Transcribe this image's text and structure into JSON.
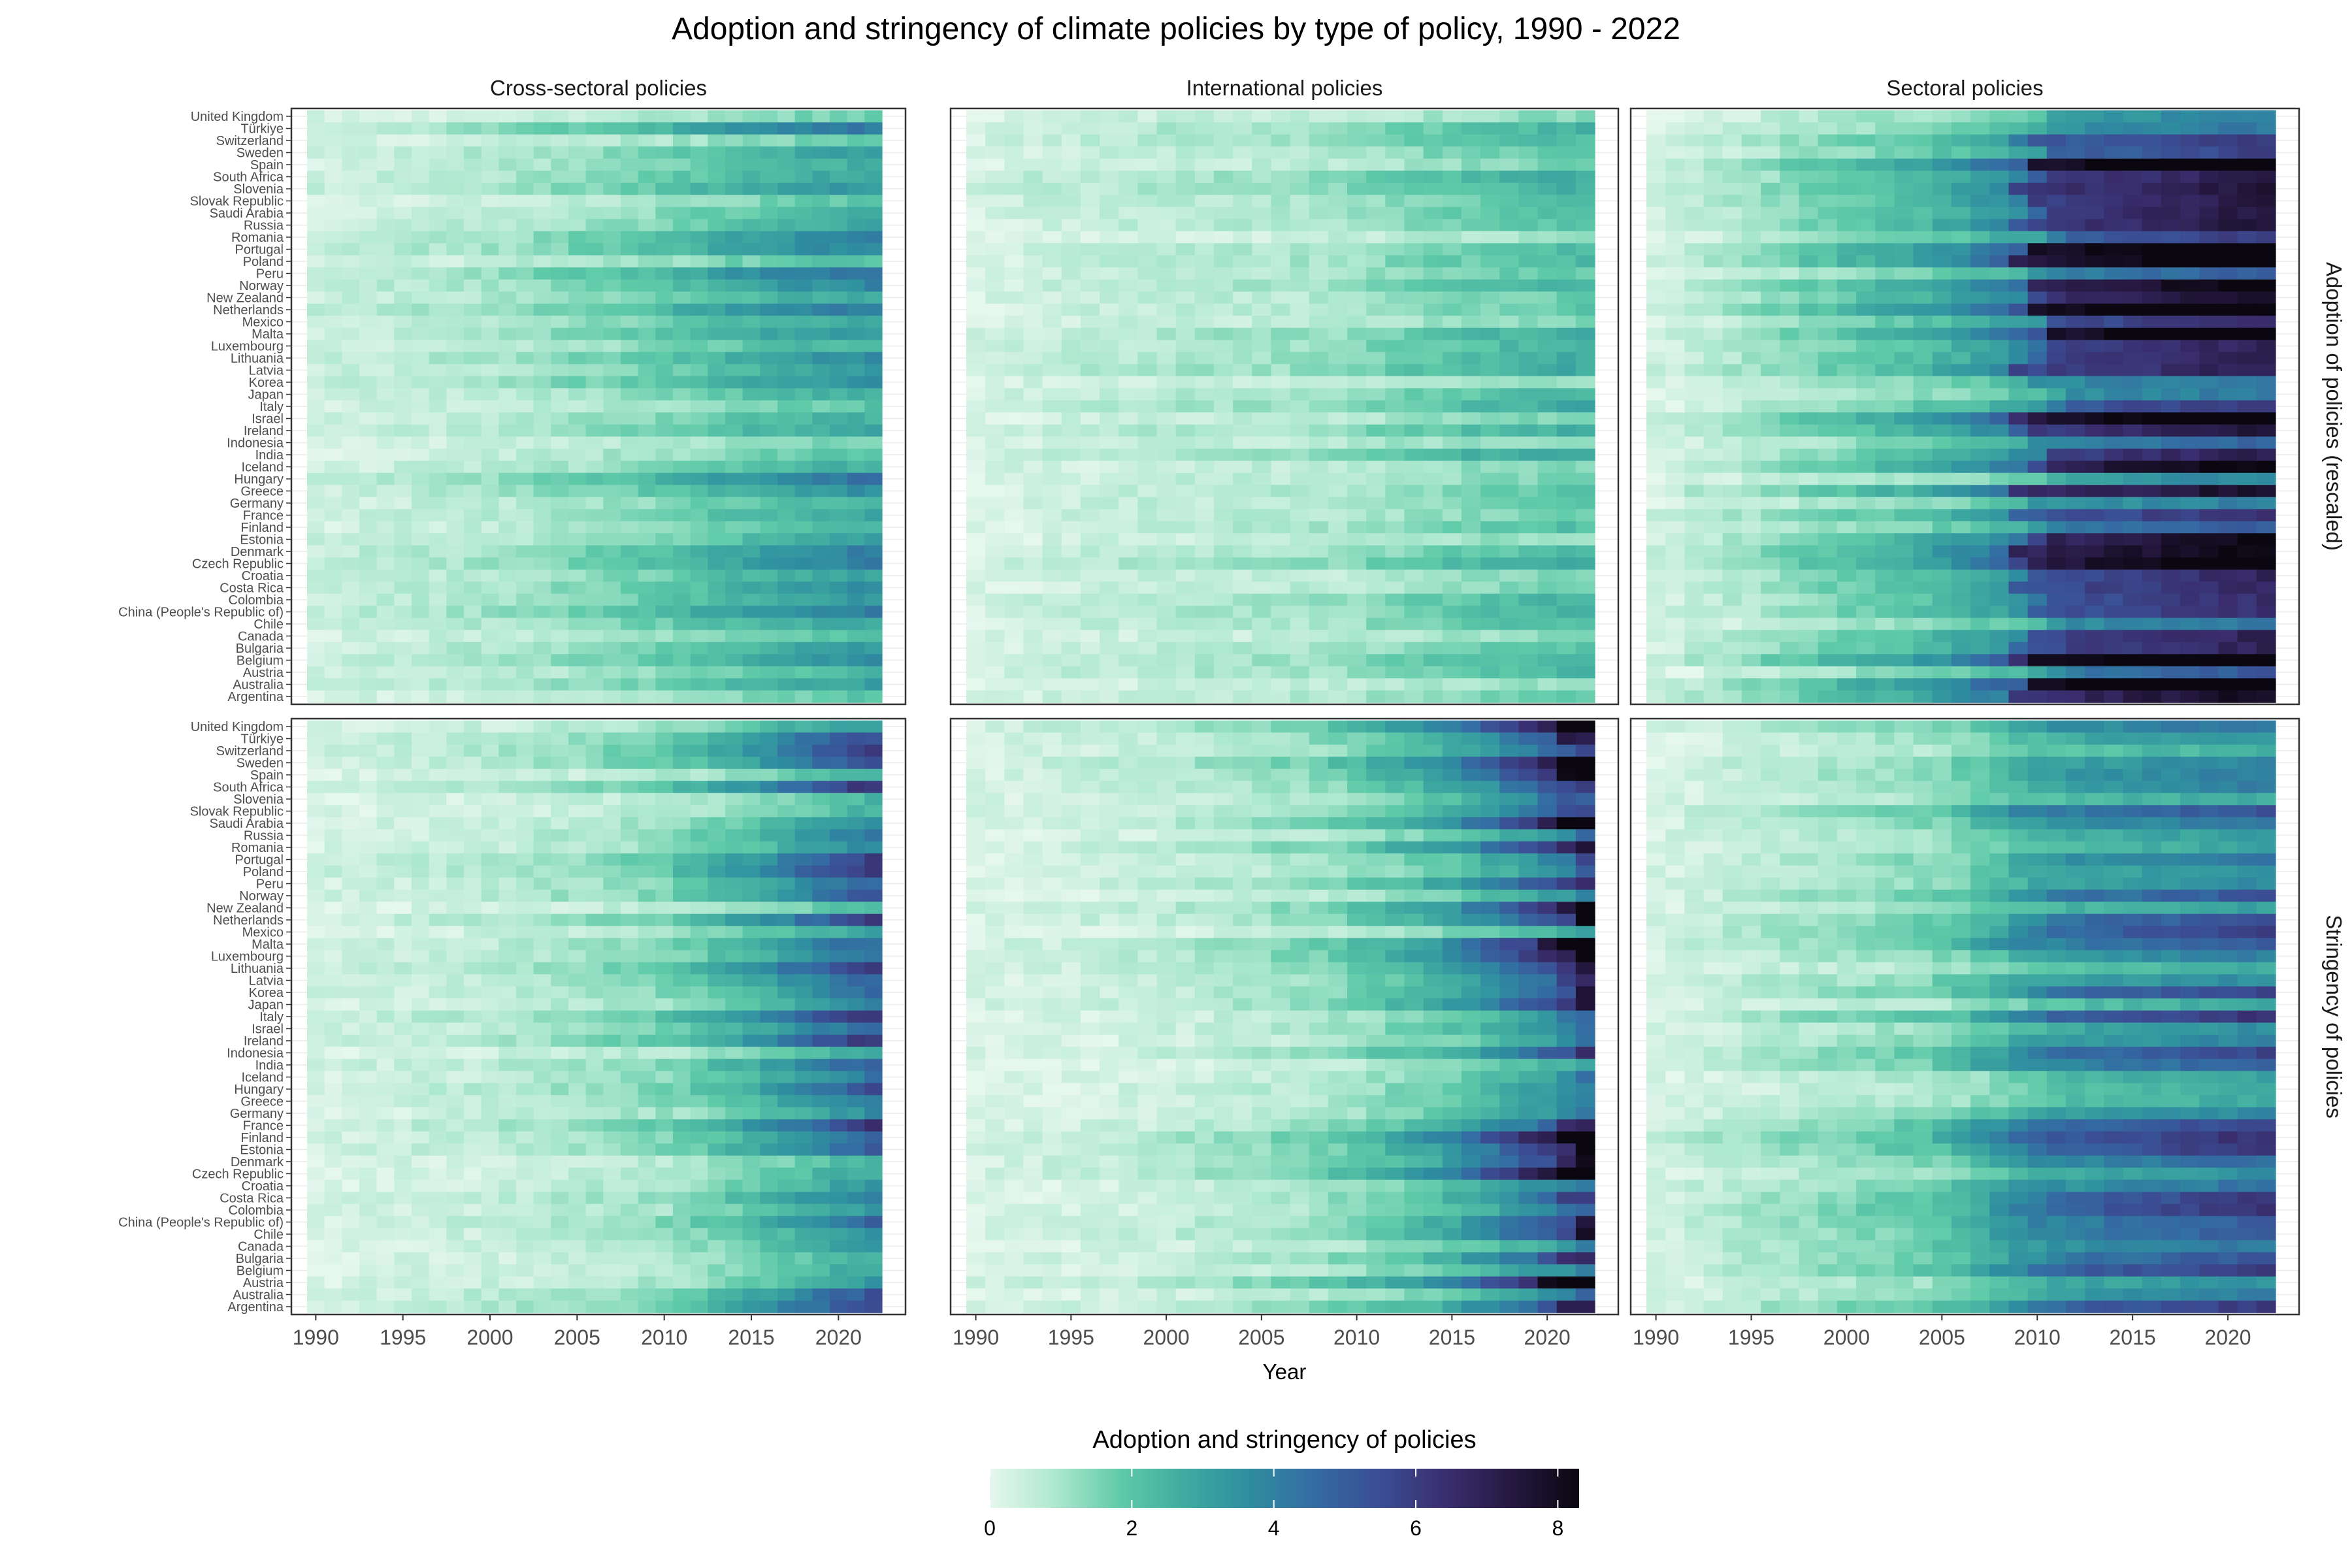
{
  "chart_data": {
    "type": "heatmap",
    "title": "Adoption and stringency of climate policies by type of policy, 1990 - 2022",
    "xlabel": "Year",
    "legend_title": "Adoption and stringency of policies",
    "legend_placement": "bottom",
    "value_range": [
      0,
      8.3
    ],
    "legend_ticks": [
      "0",
      "2",
      "4",
      "6",
      "8"
    ],
    "x_ticks": [
      "1990",
      "1995",
      "2000",
      "2005",
      "2010",
      "2015",
      "2020"
    ],
    "x_range": [
      1990,
      2022
    ],
    "columns": [
      "Cross-sectoral policies",
      "International policies",
      "Sectoral policies"
    ],
    "rows": [
      "Adoption of policies (rescaled)",
      "Stringency of policies"
    ],
    "colors": [
      "#e6f7ee",
      "#aee8d0",
      "#5fcaa8",
      "#3eaaa0",
      "#2f8ca0",
      "#346aa2",
      "#3b4c92",
      "#392d6d",
      "#24183f",
      "#0b0711"
    ],
    "grid": true,
    "countries": [
      "United Kingdom",
      "Türkiye",
      "Switzerland",
      "Sweden",
      "Spain",
      "South Africa",
      "Slovenia",
      "Slovak Republic",
      "Saudi Arabia",
      "Russia",
      "Romania",
      "Portugal",
      "Poland",
      "Peru",
      "Norway",
      "New Zealand",
      "Netherlands",
      "Mexico",
      "Malta",
      "Luxembourg",
      "Lithuania",
      "Latvia",
      "Korea",
      "Japan",
      "Italy",
      "Israel",
      "Ireland",
      "Indonesia",
      "India",
      "Iceland",
      "Hungary",
      "Greece",
      "Germany",
      "France",
      "Finland",
      "Estonia",
      "Denmark",
      "Czech Republic",
      "Croatia",
      "Costa Rica",
      "Colombia",
      "China (People's Republic of)",
      "Chile",
      "Canada",
      "Bulgaria",
      "Belgium",
      "Austria",
      "Australia",
      "Argentina"
    ],
    "value_model": "Each cell value (0 to 8.3) is estimated per panel as a smooth function of year with a per-country intensity; panel profiles listed below, values in colour-scale units.",
    "panel_profiles": [
      {
        "row": "Adoption of policies (rescaled)",
        "column": "Cross-sectoral policies",
        "years": [
          1990,
          2000,
          2010,
          2015,
          2022
        ],
        "typical_values": [
          0.4,
          0.8,
          1.6,
          2.3,
          3.0
        ]
      },
      {
        "row": "Adoption of policies (rescaled)",
        "column": "International policies",
        "years": [
          1990,
          1994,
          2000,
          2008,
          2014,
          2022
        ],
        "typical_values": [
          0.2,
          0.5,
          0.7,
          0.9,
          1.5,
          2.1
        ]
      },
      {
        "row": "Adoption of policies (rescaled)",
        "column": "Sectoral policies",
        "years": [
          1990,
          1995,
          2005,
          2009,
          2010,
          2022
        ],
        "typical_values": [
          0.3,
          1.0,
          2.4,
          3.6,
          5.6,
          7.0
        ]
      },
      {
        "row": "Stringency of policies",
        "column": "Cross-sectoral policies",
        "years": [
          1990,
          2000,
          2010,
          2016,
          2022
        ],
        "typical_values": [
          0.3,
          0.6,
          1.3,
          2.6,
          4.4
        ]
      },
      {
        "row": "Stringency of policies",
        "column": "International policies",
        "years": [
          1990,
          2000,
          2008,
          2015,
          2021,
          2022
        ],
        "typical_values": [
          0.2,
          0.6,
          1.2,
          2.6,
          5.2,
          7.4
        ]
      },
      {
        "row": "Stringency of policies",
        "column": "Sectoral policies",
        "years": [
          1990,
          1995,
          2005,
          2010,
          2022
        ],
        "typical_values": [
          0.3,
          0.8,
          1.6,
          3.5,
          4.6
        ]
      }
    ]
  }
}
